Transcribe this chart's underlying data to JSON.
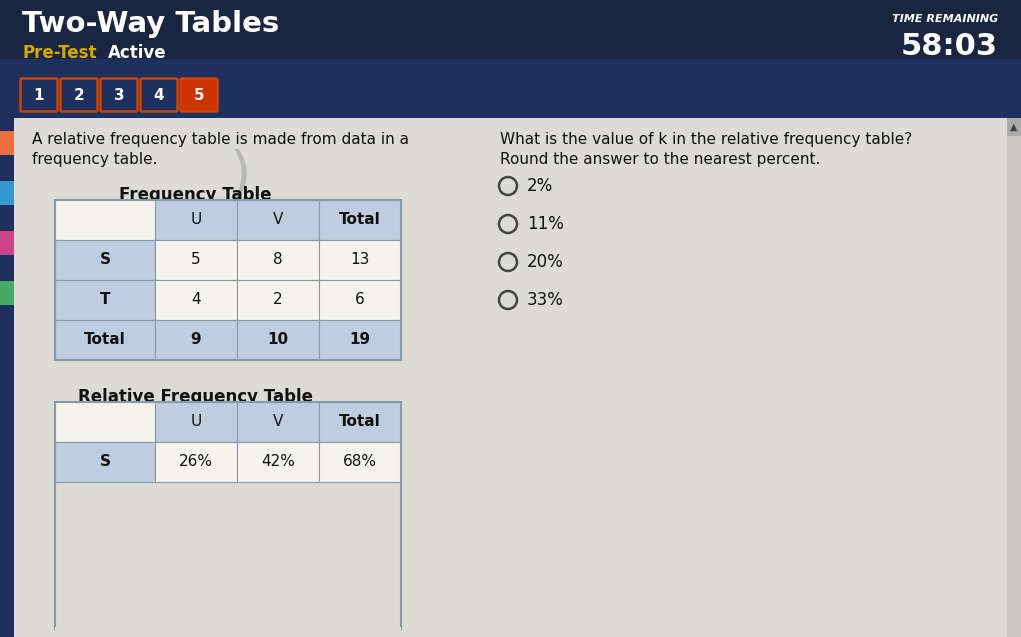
{
  "title": "Two-Way Tables",
  "subtitle_left": "Pre-Test",
  "subtitle_right": "Active",
  "header_bg_top": "#1a2540",
  "header_bg_bottom": "#1e3060",
  "header_title_color": "#ffffff",
  "pretest_color": "#d4a800",
  "active_color": "#ffffff",
  "nav_buttons": [
    "1",
    "2",
    "3",
    "4",
    "5"
  ],
  "nav_active_index": 4,
  "nav_button_border_color": "#cc4400",
  "nav_button_bg": "#1e3060",
  "nav_active_bg": "#cc3300",
  "nav_text_color": "#ffffff",
  "time_remaining_label": "TIME REMAINING",
  "time_remaining_value": "58:03",
  "time_color": "#ffffff",
  "content_bg": "#dcdcd4",
  "left_text_line1": "A relative frequency table is made from data in a",
  "left_text_line2": "frequency table.",
  "freq_table_title": "Frequency Table",
  "freq_table_headers": [
    "",
    "U",
    "V",
    "Total"
  ],
  "freq_table_rows": [
    [
      "S",
      "5",
      "8",
      "13"
    ],
    [
      "T",
      "4",
      "2",
      "6"
    ],
    [
      "Total",
      "9",
      "10",
      "19"
    ]
  ],
  "rel_table_title": "Relative Frequency Table",
  "rel_table_headers": [
    "",
    "U",
    "V",
    "Total"
  ],
  "question_text_line1": "What is the value of k in the relative frequency table?",
  "question_text_line2": "Round the answer to the nearest percent.",
  "answer_choices": [
    "2%",
    "11%",
    "20%",
    "33%"
  ],
  "table_header_bg": "#c0cce0",
  "table_row_bg": "#f4f4ec",
  "table_border_color": "#8899aa",
  "text_color": "#111111",
  "scrollbar_bg": "#c8c8c0",
  "scrollbar_thumb": "#888880"
}
